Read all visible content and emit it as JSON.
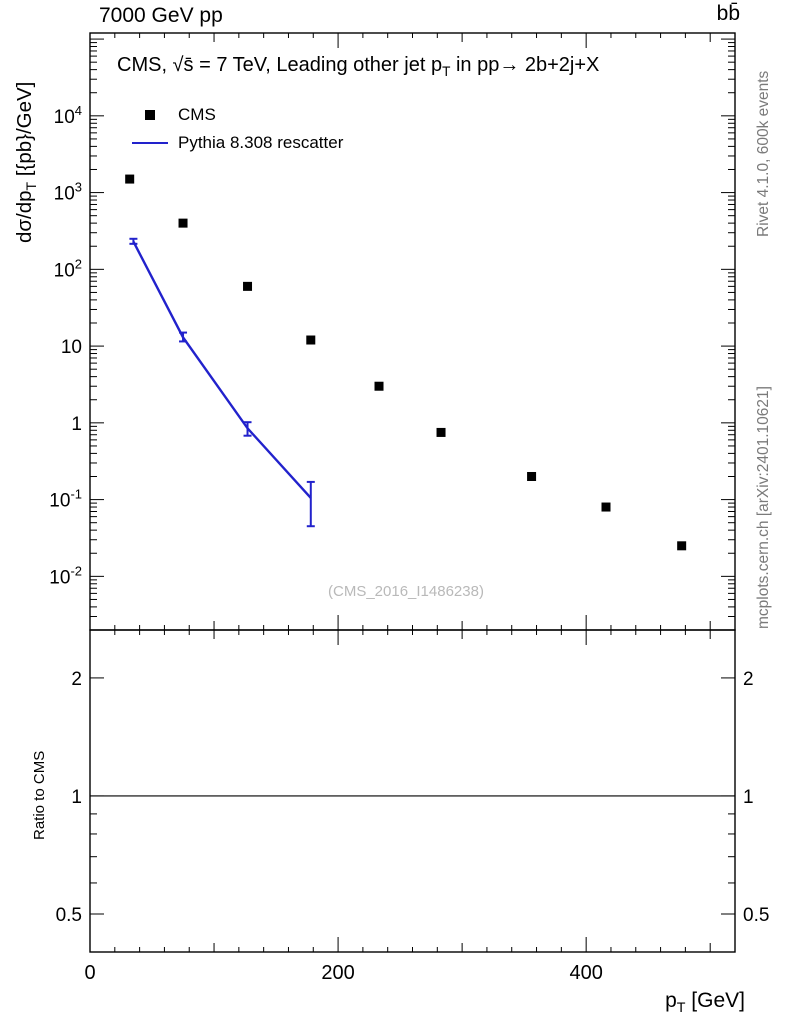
{
  "header": {
    "left": "7000 GeV pp",
    "right": "bb̄"
  },
  "plot": {
    "title_main": "CMS, √s̄ = 7 TeV, Leading other jet p",
    "title_sub": "T",
    "title_tail": " in pp→ 2b+2j+X",
    "ylabel_a": "dσ/dp",
    "ylabel_sub": "T",
    "ylabel_b": " [{pb}/GeV]",
    "xlabel_a": "p",
    "xlabel_sub": "T",
    "xlabel_b": " [GeV]",
    "ratio_ylabel": "Ratio to CMS",
    "right_top": "Rivet 4.1.0, 600k events",
    "right_bottom": "mcplots.cern.ch [arXiv:2401.10621]",
    "watermark": "(CMS_2016_I1486238)"
  },
  "legend": [
    {
      "label": "CMS",
      "marker": "filled-square",
      "color": "#000000"
    },
    {
      "label": "Pythia 8.308 rescatter",
      "marker": "line",
      "color": "#2222cc"
    }
  ],
  "chart_data": {
    "type": "scatter",
    "title": "CMS, √s = 7 TeV, Leading other jet pT in pp → 2b+2j+X",
    "xlabel": "pT [GeV]",
    "ylabel": "dσ/dpT [{pb}/GeV]",
    "grid": false,
    "legend_position": "top-left",
    "x_axis": {
      "min": 0,
      "max": 520,
      "major_ticks": [
        0,
        200,
        400
      ],
      "medium_step": 100,
      "minor_step": 20
    },
    "y_axis": {
      "scale": "log",
      "min": 0.002,
      "max": 120000,
      "label_decades": [
        -2,
        -1,
        0,
        1,
        2,
        3,
        4
      ]
    },
    "ratio_axis": {
      "label": "Ratio to CMS",
      "scale": "log",
      "min": 0.4,
      "max": 2.65,
      "ticks": [
        0.5,
        1,
        2
      ],
      "reference_line": 1
    },
    "series": [
      {
        "name": "CMS",
        "type": "points",
        "marker": "filled-square",
        "color": "#000000",
        "points": [
          [
            32,
            1500
          ],
          [
            75,
            400
          ],
          [
            127,
            60
          ],
          [
            178,
            12
          ],
          [
            233,
            3
          ],
          [
            283,
            0.75
          ],
          [
            356,
            0.2
          ],
          [
            416,
            0.08
          ],
          [
            477,
            0.025
          ]
        ]
      },
      {
        "name": "Pythia 8.308 rescatter",
        "type": "line",
        "color": "#2222cc",
        "points": [
          [
            35,
            230
          ],
          [
            75,
            13
          ],
          [
            127,
            0.85
          ],
          [
            178,
            0.105
          ]
        ],
        "yerr": [
          [
            215,
            250
          ],
          [
            11.5,
            15
          ],
          [
            0.68,
            1.02
          ],
          [
            0.045,
            0.17
          ]
        ]
      }
    ]
  }
}
